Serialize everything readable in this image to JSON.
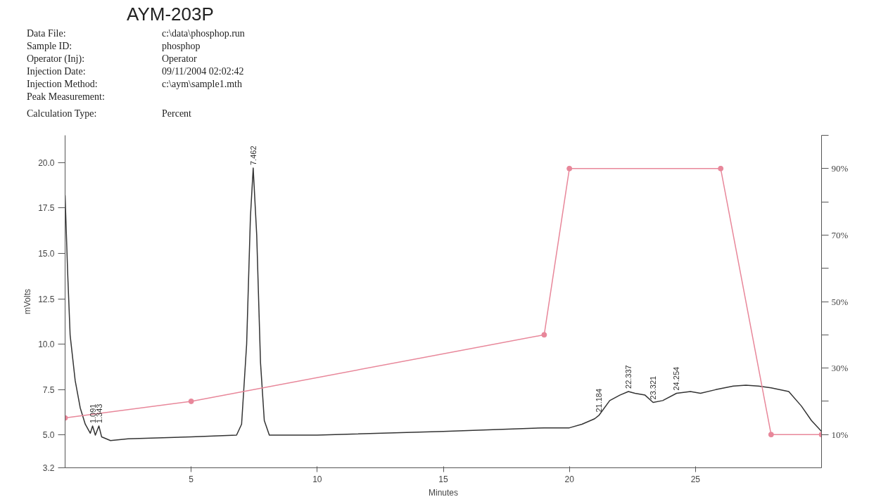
{
  "chart_data": {
    "type": "line",
    "xlabel": "Minutes",
    "ylabel": "mVolts",
    "xlim": [
      0,
      30
    ],
    "xticks": [
      5,
      10,
      15,
      20,
      25
    ],
    "ylim": [
      3.2,
      21.5
    ],
    "yticks": [
      3.2,
      {
        "value": 5,
        "label": "5.0"
      },
      7.5,
      {
        "value": 10,
        "label": "10.0"
      },
      12.5,
      {
        "value": 15,
        "label": "15.0"
      },
      17.5,
      {
        "value": 20,
        "label": "20.0"
      }
    ],
    "y2lim": [
      0,
      100
    ],
    "y2ticks": [
      {
        "value": 10,
        "label": "10%"
      },
      {
        "value": 20,
        "label": null
      },
      {
        "value": 30,
        "label": "30%"
      },
      {
        "value": 40,
        "label": null
      },
      {
        "value": 50,
        "label": "50%"
      },
      {
        "value": 60,
        "label": null
      },
      {
        "value": 70,
        "label": "70%"
      },
      {
        "value": 80,
        "label": null
      },
      {
        "value": 90,
        "label": "90%"
      },
      {
        "value": 100,
        "label": null
      }
    ],
    "grid": false,
    "series": [
      {
        "color": "#333333",
        "marker": "none",
        "x": [
          0.0,
          0.1,
          0.2,
          0.4,
          0.6,
          0.8,
          1.0,
          1.09,
          1.2,
          1.34,
          1.45,
          1.8,
          2.5,
          5.0,
          6.8,
          7.0,
          7.2,
          7.35,
          7.46,
          7.6,
          7.75,
          7.9,
          8.1,
          10.0,
          15.0,
          19.0,
          20.0,
          20.5,
          21.0,
          21.18,
          21.6,
          22.0,
          22.34,
          22.6,
          23.0,
          23.32,
          23.7,
          24.25,
          24.8,
          25.2,
          25.8,
          26.5,
          27.0,
          27.5,
          28.0,
          28.7,
          29.2,
          29.6,
          30.0
        ],
        "values": [
          18.2,
          14.0,
          10.5,
          8.0,
          6.5,
          5.6,
          5.1,
          5.5,
          5.0,
          5.5,
          4.9,
          4.7,
          4.8,
          4.9,
          5.0,
          5.6,
          10.0,
          17.0,
          19.7,
          16.0,
          9.0,
          5.8,
          5.0,
          5.0,
          5.2,
          5.4,
          5.4,
          5.6,
          5.9,
          6.1,
          6.9,
          7.2,
          7.4,
          7.3,
          7.2,
          6.8,
          6.9,
          7.3,
          7.4,
          7.3,
          7.5,
          7.7,
          7.75,
          7.7,
          7.6,
          7.4,
          6.6,
          5.8,
          5.2
        ]
      },
      {
        "color": "#e8879a",
        "marker": "circle",
        "axis": "y2",
        "x": [
          0,
          5,
          19,
          20,
          26,
          28,
          30
        ],
        "values": [
          15,
          20,
          40,
          90,
          90,
          10,
          10
        ]
      }
    ],
    "annotations": [
      "AYM-203P",
      "Data File:",
      "c:\\data\\phosphop.run",
      "Sample ID:",
      "phosphop",
      "Operator (Inj):",
      "Operator",
      "Injection Date:",
      "09/11/2004 02:02:42",
      "Injection Method:",
      "c:\\aym\\sample1.mth",
      "Peak Measurement:",
      "Calculation Type:",
      "Percent",
      {
        "text": "1.091",
        "x": 1.09,
        "y": 5.5
      },
      {
        "text": "1.343",
        "x": 1.34,
        "y": 5.5
      },
      {
        "text": "7.462",
        "x": 7.46,
        "y": 19.7
      },
      {
        "text": "21.184",
        "x": 21.18,
        "y": 6.1
      },
      {
        "text": "22.337",
        "x": 22.34,
        "y": 7.4
      },
      {
        "text": "23.321",
        "x": 23.32,
        "y": 6.8
      },
      {
        "text": "24.254",
        "x": 24.25,
        "y": 7.3
      }
    ]
  }
}
